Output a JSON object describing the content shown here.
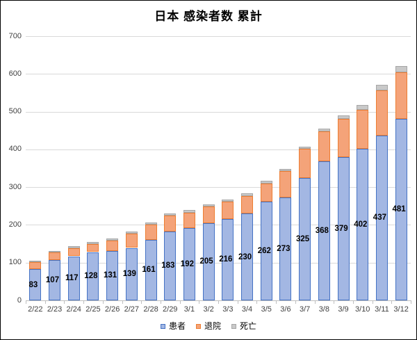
{
  "chart_data": {
    "type": "bar",
    "stacked": true,
    "title": "日本 感染者数 累計",
    "categories": [
      "2/22",
      "2/23",
      "2/24",
      "2/25",
      "2/26",
      "2/27",
      "2/28",
      "2/29",
      "3/1",
      "3/2",
      "3/3",
      "3/4",
      "3/5",
      "3/6",
      "3/7",
      "3/8",
      "3/9",
      "3/10",
      "3/11",
      "3/12"
    ],
    "series": [
      {
        "name": "患者",
        "fill": "#a3b7e3",
        "border": "#4472c4",
        "labeled": true,
        "values": [
          83,
          107,
          117,
          128,
          131,
          139,
          161,
          183,
          192,
          205,
          216,
          230,
          262,
          273,
          325,
          368,
          379,
          402,
          437,
          481
        ]
      },
      {
        "name": "退院",
        "fill": "#f4a379",
        "border": "#ed7d31",
        "labeled": false,
        "values": [
          19,
          20,
          22,
          22,
          28,
          38,
          40,
          41,
          41,
          43,
          45,
          47,
          48,
          69,
          76,
          80,
          102,
          103,
          120,
          124
        ]
      },
      {
        "name": "死亡",
        "fill": "#c9c9c9",
        "border": "#a6a6a6",
        "labeled": false,
        "values": [
          3,
          4,
          4,
          5,
          5,
          6,
          6,
          6,
          6,
          6,
          7,
          7,
          7,
          7,
          7,
          8,
          10,
          12,
          15,
          16
        ]
      }
    ],
    "stack_totals": [
      105,
      131,
      143,
      155,
      164,
      183,
      207,
      230,
      239,
      254,
      268,
      284,
      317,
      349,
      408,
      456,
      491,
      517,
      572,
      621
    ],
    "ylim": [
      0,
      700
    ],
    "yticks": [
      "0",
      "100",
      "200",
      "300",
      "400",
      "500",
      "600",
      "700"
    ],
    "grid": true,
    "legend_position": "bottom",
    "legend_items": [
      "患者",
      "退院",
      "死亡"
    ]
  },
  "style": {
    "gridline_color": "#d9d9d9",
    "axis_color": "#bfbfbf",
    "tick_label_color": "#404040",
    "data_label_color": "#000000",
    "background": "#ffffff"
  }
}
